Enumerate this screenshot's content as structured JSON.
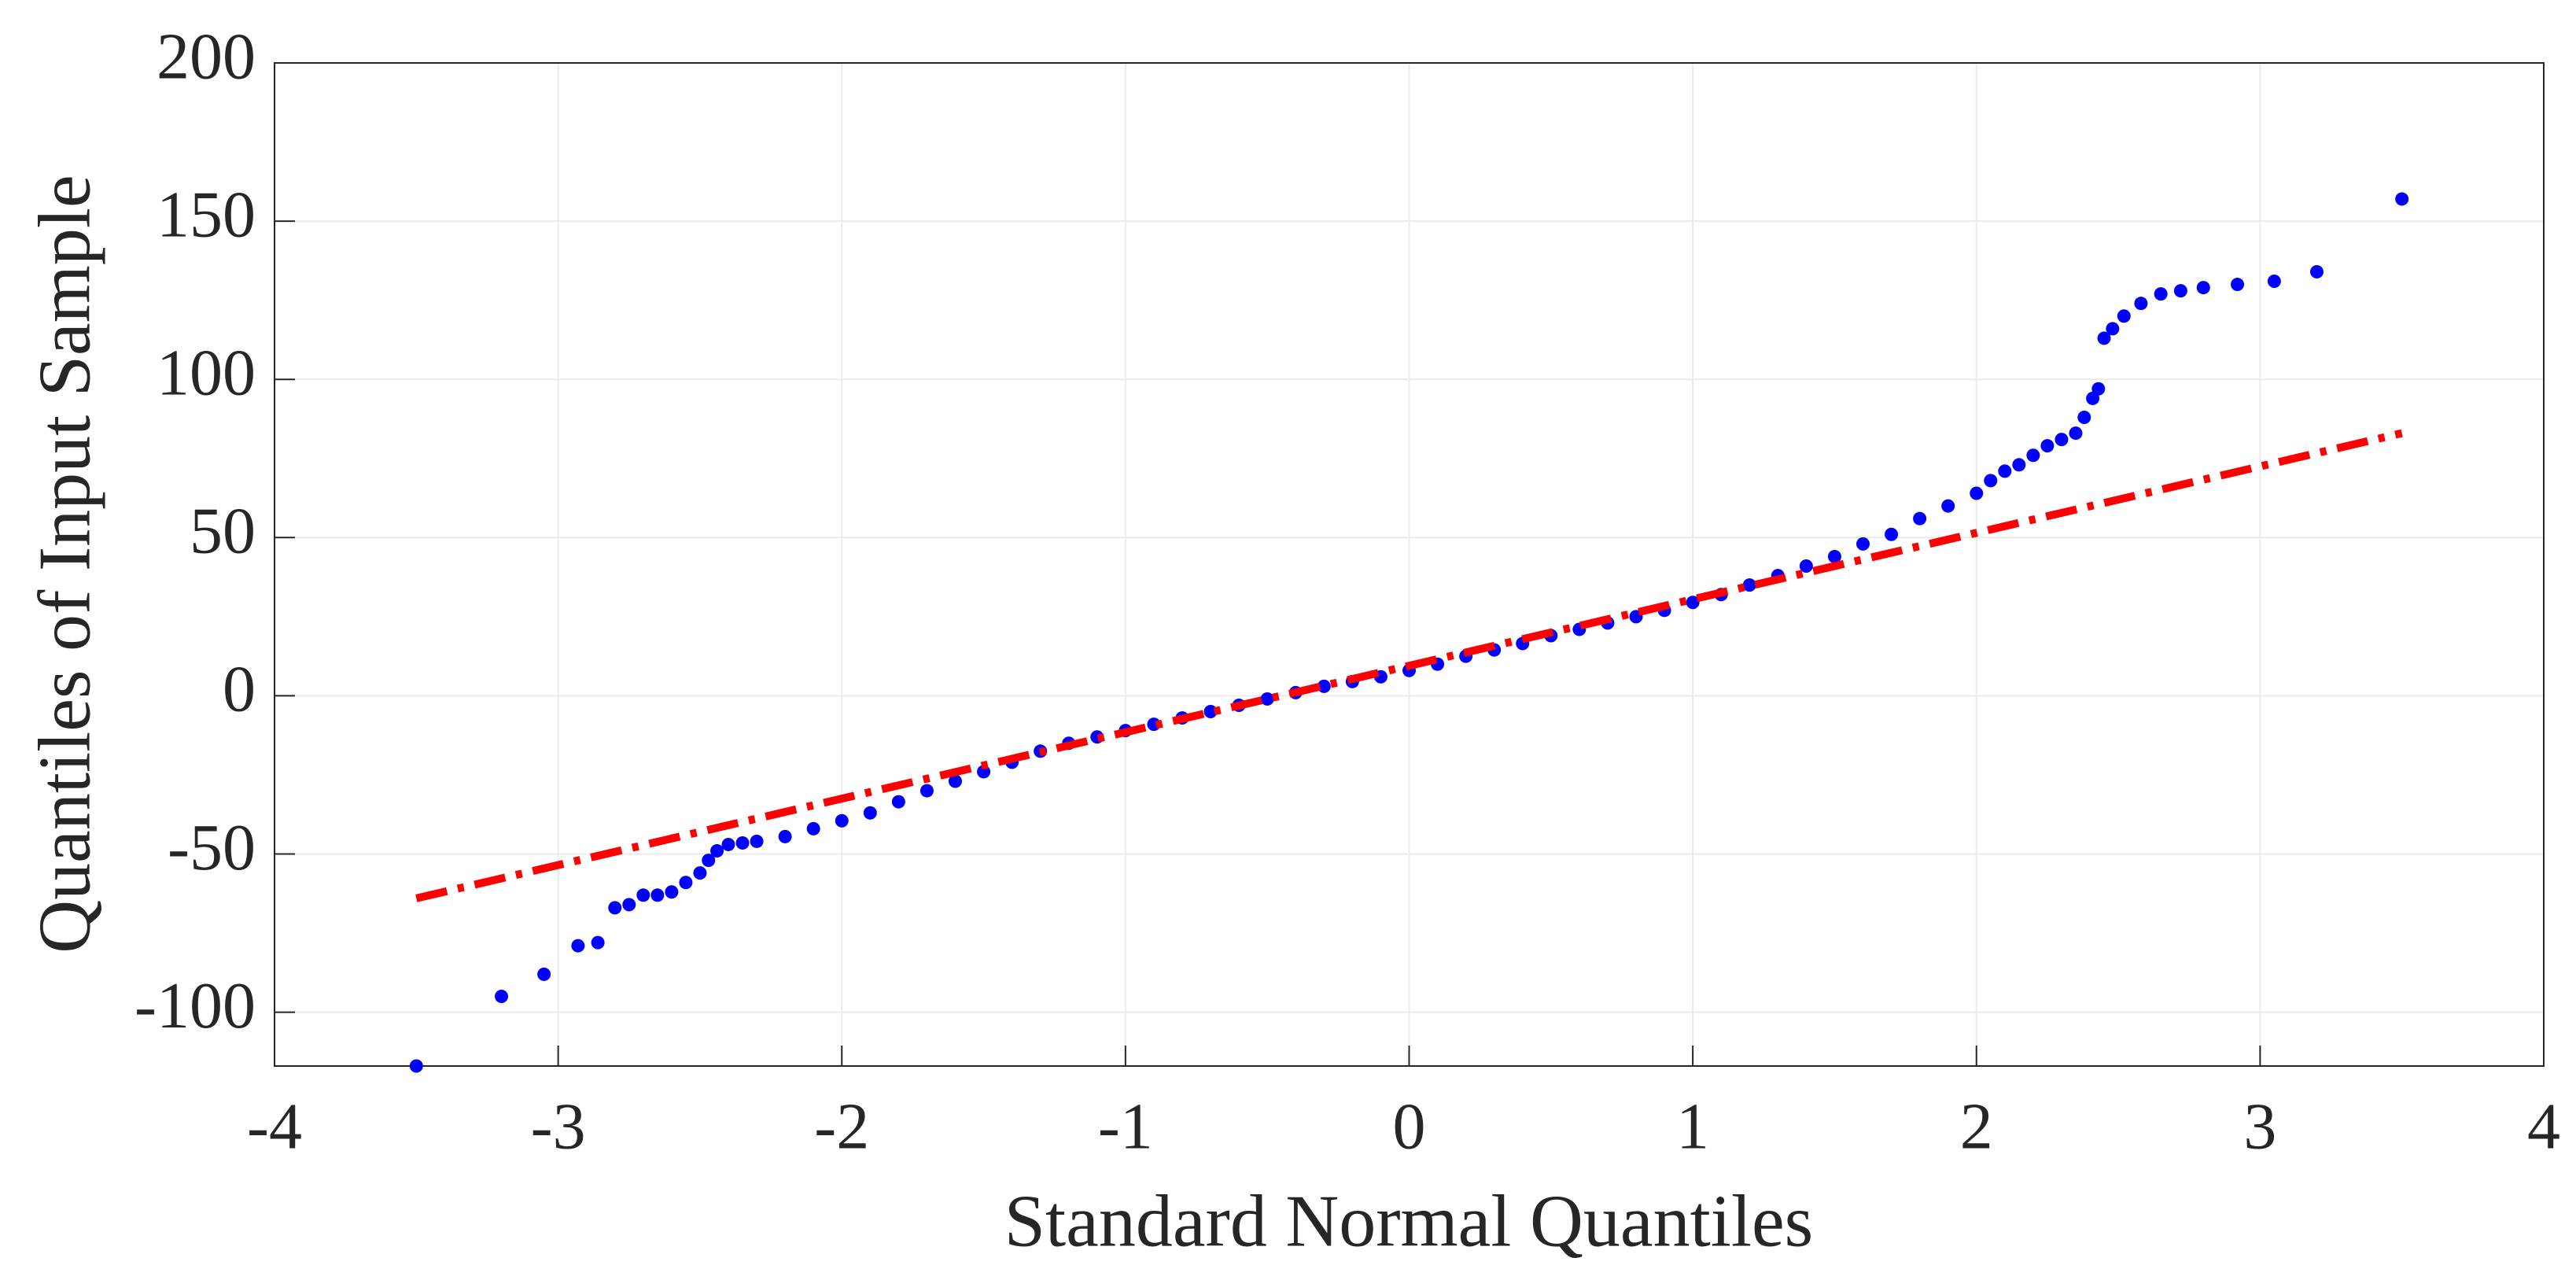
{
  "chart_data": {
    "type": "scatter",
    "xlabel": "Standard Normal Quantiles",
    "ylabel": "Quantiles of Input Sample",
    "xlim": [
      -4,
      4
    ],
    "xticks": [
      -4,
      -3,
      -2,
      -1,
      0,
      1,
      2,
      3,
      4
    ],
    "ylim": [
      -117,
      200
    ],
    "yticks": [
      -100,
      -50,
      0,
      50,
      100,
      150,
      200
    ],
    "grid": true,
    "series": [
      {
        "kind": "points",
        "color": "#0000ff",
        "x": [
          -3.5,
          -3.2,
          -3.05,
          -2.93,
          -2.86,
          -2.8,
          -2.75,
          -2.7,
          -2.65,
          -2.6,
          -2.55,
          -2.5,
          -2.47,
          -2.44,
          -2.4,
          -2.35,
          -2.3,
          -2.2,
          -2.1,
          -2.0,
          -1.9,
          -1.8,
          -1.7,
          -1.6,
          -1.5,
          -1.4,
          -1.3,
          -1.2,
          -1.1,
          -1.0,
          -0.9,
          -0.8,
          -0.7,
          -0.6,
          -0.5,
          -0.4,
          -0.3,
          -0.2,
          -0.1,
          0,
          0.1,
          0.2,
          0.3,
          0.4,
          0.5,
          0.6,
          0.7,
          0.8,
          0.9,
          1.0,
          1.1,
          1.2,
          1.3,
          1.4,
          1.5,
          1.6,
          1.7,
          1.8,
          1.9,
          2.0,
          2.05,
          2.1,
          2.15,
          2.2,
          2.25,
          2.3,
          2.35,
          2.38,
          2.41,
          2.43,
          2.45,
          2.48,
          2.52,
          2.58,
          2.65,
          2.72,
          2.8,
          2.92,
          3.05,
          3.2,
          3.5
        ],
        "values": [
          -117,
          -95,
          -88,
          -79,
          -78,
          -67,
          -66,
          -63,
          -63,
          -62,
          -59,
          -56,
          -52,
          -49,
          -47,
          -46.5,
          -46,
          -44.5,
          -42,
          -39.5,
          -37,
          -33.5,
          -30,
          -27,
          -24,
          -21,
          -17.5,
          -15,
          -13,
          -11,
          -9,
          -7,
          -5,
          -3,
          -1,
          1,
          3,
          4.5,
          6,
          8,
          10,
          12.5,
          14.5,
          16.5,
          19,
          21,
          23,
          25,
          27,
          29.5,
          32,
          35,
          38,
          41,
          44,
          48,
          51,
          56,
          60,
          64,
          68,
          71,
          73,
          76,
          79,
          81,
          83,
          88,
          94,
          97,
          113,
          116,
          120,
          124,
          127,
          128,
          129,
          130,
          131,
          134,
          157
        ]
      },
      {
        "kind": "line",
        "color": "#ff0000",
        "x": [
          -3.5,
          3.5
        ],
        "values": [
          -64,
          83
        ]
      }
    ]
  }
}
